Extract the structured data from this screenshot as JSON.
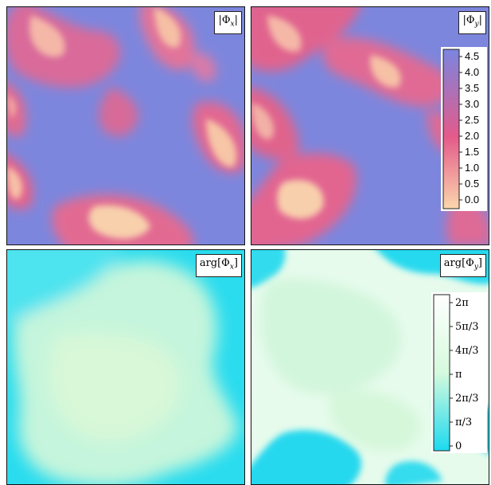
{
  "panels": [
    {
      "id": "mag-x",
      "label_base": "|Φ",
      "label_sub": "x",
      "label_end": "|",
      "palette": "magnitude"
    },
    {
      "id": "mag-y",
      "label_base": "|Φ",
      "label_sub": "y",
      "label_end": "|",
      "palette": "magnitude"
    },
    {
      "id": "arg-x",
      "label_base": "arg[Φ",
      "label_sub": "x",
      "label_end": "]",
      "palette": "phase"
    },
    {
      "id": "arg-y",
      "label_base": "arg[Φ",
      "label_sub": "y",
      "label_end": "]",
      "palette": "phase"
    }
  ],
  "magnitude_colorbar": {
    "ticks": [
      "4.5",
      "4.0",
      "3.5",
      "3.0",
      "2.5",
      "2.0",
      "1.5",
      "1.0",
      "0.5",
      "0.0"
    ],
    "colors": [
      "#7b85e0",
      "#e45a8a",
      "#fbd7ad"
    ]
  },
  "phase_colorbar": {
    "ticks": [
      "2π",
      "5π/3",
      "4π/3",
      "π",
      "2π/3",
      "π/3",
      "0"
    ],
    "colors": [
      "#1cd9ef",
      "#d5fadd",
      "#ffffff"
    ]
  }
}
